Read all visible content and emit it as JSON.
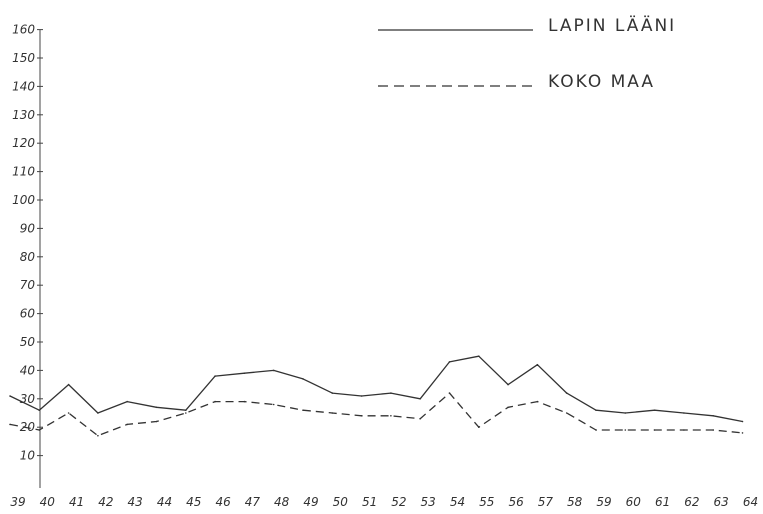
{
  "chart_data": {
    "type": "line",
    "x": [
      "39",
      "40",
      "41",
      "42",
      "43",
      "44",
      "45",
      "46",
      "47",
      "48",
      "49",
      "50",
      "51",
      "52",
      "53",
      "54",
      "55",
      "56",
      "57",
      "58",
      "59",
      "60",
      "61",
      "62",
      "63",
      "64"
    ],
    "y_ticks": [
      "10",
      "20",
      "30",
      "40",
      "50",
      "60",
      "70",
      "80",
      "90",
      "100",
      "110",
      "120",
      "130",
      "140",
      "150",
      "160"
    ],
    "ylim": [
      0,
      160
    ],
    "grid": false,
    "legend_position": "top-right",
    "series": [
      {
        "name": "LAPIN LÄÄNI",
        "style": "solid",
        "color": "#333333",
        "values": [
          31,
          26,
          35,
          25,
          29,
          27,
          26,
          38,
          39,
          40,
          37,
          32,
          31,
          32,
          30,
          43,
          45,
          35,
          42,
          32,
          26,
          25,
          26,
          25,
          24,
          22
        ]
      },
      {
        "name": "KOKO MAA",
        "style": "dashed",
        "color": "#333333",
        "values": [
          21,
          19,
          25,
          17,
          21,
          22,
          25,
          29,
          29,
          28,
          26,
          25,
          24,
          24,
          23,
          32,
          20,
          27,
          29,
          25,
          19,
          19,
          19,
          19,
          19,
          18
        ]
      }
    ]
  }
}
